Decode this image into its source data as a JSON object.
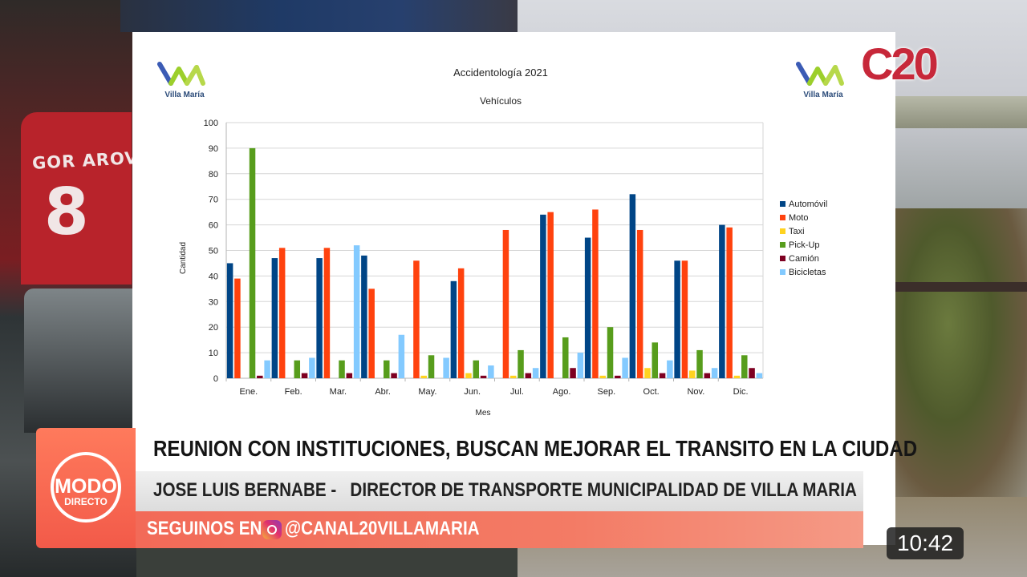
{
  "slide": {
    "title": "Accidentología 2021",
    "subtitle": "Vehículos",
    "logo_text": "Villa María"
  },
  "channel_logo": "C20",
  "background": {
    "jersey_name": "GOR AROVA",
    "jersey_number": "8"
  },
  "chart_data": {
    "type": "bar",
    "title": "Accidentología 2021",
    "subtitle": "Vehículos",
    "xlabel": "Mes",
    "ylabel": "Cantidad",
    "ylim": [
      0,
      100
    ],
    "yticks": [
      0,
      10,
      20,
      30,
      40,
      50,
      60,
      70,
      80,
      90,
      100
    ],
    "grid": true,
    "legend_position": "right",
    "categories": [
      "Ene.",
      "Feb.",
      "Mar.",
      "Abr.",
      "May.",
      "Jun.",
      "Jul.",
      "Ago.",
      "Sep.",
      "Oct.",
      "Nov.",
      "Dic."
    ],
    "series": [
      {
        "name": "Automóvil",
        "color": "#004586",
        "values": [
          45,
          47,
          47,
          48,
          0,
          38,
          0,
          64,
          55,
          72,
          46,
          60
        ]
      },
      {
        "name": "Moto",
        "color": "#ff420e",
        "values": [
          39,
          51,
          51,
          35,
          46,
          43,
          58,
          65,
          66,
          58,
          46,
          59
        ]
      },
      {
        "name": "Taxi",
        "color": "#ffd320",
        "values": [
          0,
          0,
          0,
          0,
          1,
          2,
          1,
          0,
          1,
          4,
          3,
          1
        ]
      },
      {
        "name": "Pick-Up",
        "color": "#579d1c",
        "values": [
          90,
          7,
          7,
          7,
          9,
          7,
          11,
          16,
          20,
          14,
          11,
          9
        ]
      },
      {
        "name": "Camión",
        "color": "#7e0021",
        "values": [
          1,
          2,
          2,
          2,
          0,
          1,
          2,
          4,
          1,
          2,
          2,
          4
        ]
      },
      {
        "name": "Bicicletas",
        "color": "#83caff",
        "values": [
          7,
          8,
          52,
          17,
          8,
          5,
          4,
          10,
          8,
          7,
          4,
          2
        ]
      }
    ]
  },
  "lower_third": {
    "badge_line1": "MODO",
    "badge_line2": "DIRECTO",
    "headline": "REUNION CON INSTITUCIONES, BUSCAN MEJORAR EL TRANSITO EN LA CIUDAD",
    "subline": "JOSE LUIS BERNABE -   DIRECTOR DE TRANSPORTE MUNICIPALIDAD DE VILLA MARIA",
    "social_prefix": "SEGUINOS EN",
    "social_handle": "@CANAL20VILLAMARIA"
  },
  "video": {
    "timestamp": "10:42"
  }
}
